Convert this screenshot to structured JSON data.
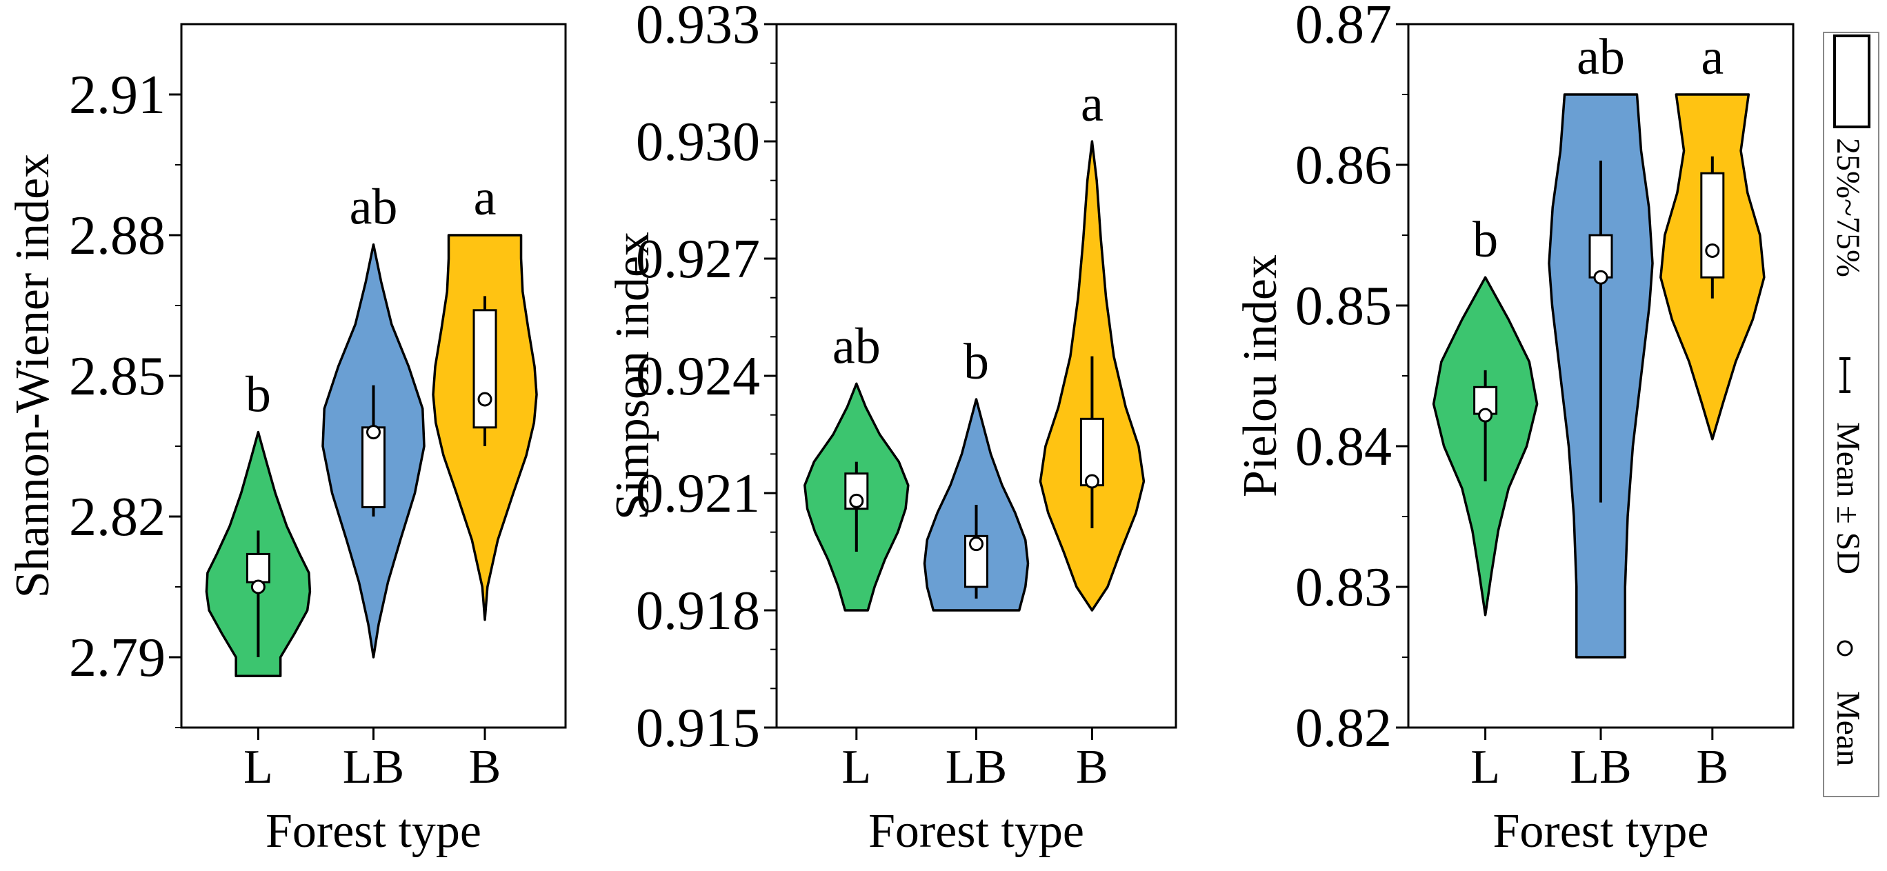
{
  "colors": {
    "L": "#3cc56f",
    "LB": "#6a9fd3",
    "B": "#ffc312"
  },
  "legend": {
    "box_label": "25%~75%",
    "whisker_label": "Mean ± SD",
    "mean_label": "Mean"
  },
  "chart_data": [
    {
      "type": "violin",
      "xlabel": "Forest type",
      "ylabel": "Shannon-Wiener index",
      "ylim": [
        2.775,
        2.925
      ],
      "yticks": [
        2.79,
        2.82,
        2.85,
        2.88,
        2.91
      ],
      "ytick_labels": [
        "2.79",
        "2.82",
        "2.85",
        "2.88",
        "2.91"
      ],
      "categories": [
        "L",
        "LB",
        "B"
      ],
      "series": [
        {
          "name": "L",
          "min": 2.786,
          "max": 2.838,
          "q1": 2.806,
          "q3": 2.812,
          "mean": 2.805,
          "sd_low": 2.79,
          "sd_high": 2.817,
          "letter": "b",
          "shape": [
            [
              2.786,
              0.43
            ],
            [
              2.79,
              0.43
            ],
            [
              2.795,
              0.7
            ],
            [
              2.8,
              0.95
            ],
            [
              2.804,
              1.0
            ],
            [
              2.808,
              0.98
            ],
            [
              2.812,
              0.8
            ],
            [
              2.818,
              0.55
            ],
            [
              2.825,
              0.33
            ],
            [
              2.832,
              0.15
            ],
            [
              2.838,
              0.0
            ]
          ]
        },
        {
          "name": "LB",
          "min": 2.79,
          "max": 2.878,
          "q1": 2.822,
          "q3": 2.839,
          "mean": 2.838,
          "sd_low": 2.82,
          "sd_high": 2.848,
          "letter": "ab",
          "shape": [
            [
              2.79,
              0.0
            ],
            [
              2.797,
              0.1
            ],
            [
              2.806,
              0.28
            ],
            [
              2.815,
              0.52
            ],
            [
              2.825,
              0.8
            ],
            [
              2.835,
              0.98
            ],
            [
              2.843,
              0.95
            ],
            [
              2.852,
              0.68
            ],
            [
              2.861,
              0.35
            ],
            [
              2.87,
              0.15
            ],
            [
              2.878,
              0.0
            ]
          ]
        },
        {
          "name": "B",
          "min": 2.798,
          "max": 2.88,
          "q1": 2.839,
          "q3": 2.864,
          "mean": 2.845,
          "sd_low": 2.835,
          "sd_high": 2.867,
          "letter": "a",
          "shape": [
            [
              2.798,
              0.0
            ],
            [
              2.805,
              0.05
            ],
            [
              2.815,
              0.25
            ],
            [
              2.825,
              0.55
            ],
            [
              2.833,
              0.8
            ],
            [
              2.84,
              0.95
            ],
            [
              2.846,
              1.0
            ],
            [
              2.852,
              0.96
            ],
            [
              2.86,
              0.84
            ],
            [
              2.868,
              0.73
            ],
            [
              2.875,
              0.7
            ],
            [
              2.88,
              0.7
            ]
          ]
        }
      ]
    },
    {
      "type": "violin",
      "xlabel": "Forest type",
      "ylabel": "Simpson index",
      "ylim": [
        0.915,
        0.933
      ],
      "yticks": [
        0.915,
        0.918,
        0.921,
        0.924,
        0.927,
        0.93,
        0.933
      ],
      "ytick_labels": [
        "0.915",
        "0.918",
        "0.921",
        "0.924",
        "0.927",
        "0.930",
        "0.933"
      ],
      "categories": [
        "L",
        "LB",
        "B"
      ],
      "series": [
        {
          "name": "L",
          "min": 0.918,
          "max": 0.9238,
          "q1": 0.9206,
          "q3": 0.9215,
          "mean": 0.9208,
          "sd_low": 0.9195,
          "sd_high": 0.9218,
          "letter": "ab",
          "shape": [
            [
              0.918,
              0.22
            ],
            [
              0.9186,
              0.35
            ],
            [
              0.9193,
              0.55
            ],
            [
              0.92,
              0.8
            ],
            [
              0.9206,
              0.95
            ],
            [
              0.9212,
              1.0
            ],
            [
              0.9218,
              0.82
            ],
            [
              0.9225,
              0.45
            ],
            [
              0.9232,
              0.18
            ],
            [
              0.9238,
              0.0
            ]
          ]
        },
        {
          "name": "LB",
          "min": 0.918,
          "max": 0.9234,
          "q1": 0.9186,
          "q3": 0.9199,
          "mean": 0.9197,
          "sd_low": 0.9183,
          "sd_high": 0.9207,
          "letter": "b",
          "shape": [
            [
              0.918,
              0.83
            ],
            [
              0.9186,
              0.95
            ],
            [
              0.9192,
              1.0
            ],
            [
              0.9198,
              0.95
            ],
            [
              0.9205,
              0.75
            ],
            [
              0.9212,
              0.5
            ],
            [
              0.922,
              0.28
            ],
            [
              0.9228,
              0.12
            ],
            [
              0.9234,
              0.0
            ]
          ]
        },
        {
          "name": "B",
          "min": 0.918,
          "max": 0.93,
          "q1": 0.9212,
          "q3": 0.9229,
          "mean": 0.9213,
          "sd_low": 0.9201,
          "sd_high": 0.9245,
          "letter": "a",
          "shape": [
            [
              0.918,
              0.0
            ],
            [
              0.9186,
              0.3
            ],
            [
              0.9195,
              0.55
            ],
            [
              0.9205,
              0.85
            ],
            [
              0.9213,
              1.0
            ],
            [
              0.9222,
              0.9
            ],
            [
              0.9232,
              0.65
            ],
            [
              0.9245,
              0.42
            ],
            [
              0.926,
              0.27
            ],
            [
              0.9275,
              0.17
            ],
            [
              0.929,
              0.09
            ],
            [
              0.93,
              0.0
            ]
          ]
        }
      ]
    },
    {
      "type": "violin",
      "xlabel": "Forest type",
      "ylabel": "Pielou index",
      "ylim": [
        0.82,
        0.87
      ],
      "yticks": [
        0.82,
        0.83,
        0.84,
        0.85,
        0.86,
        0.87
      ],
      "ytick_labels": [
        "0.82",
        "0.83",
        "0.84",
        "0.85",
        "0.86",
        "0.87"
      ],
      "categories": [
        "L",
        "LB",
        "B"
      ],
      "series": [
        {
          "name": "L",
          "min": 0.828,
          "max": 0.852,
          "q1": 0.8423,
          "q3": 0.8442,
          "mean": 0.8422,
          "sd_low": 0.8375,
          "sd_high": 0.8454,
          "letter": "b",
          "shape": [
            [
              0.828,
              0.0
            ],
            [
              0.831,
              0.12
            ],
            [
              0.834,
              0.25
            ],
            [
              0.837,
              0.45
            ],
            [
              0.84,
              0.8
            ],
            [
              0.843,
              1.0
            ],
            [
              0.846,
              0.85
            ],
            [
              0.849,
              0.45
            ],
            [
              0.852,
              0.0
            ]
          ]
        },
        {
          "name": "LB",
          "min": 0.825,
          "max": 0.865,
          "q1": 0.852,
          "q3": 0.855,
          "mean": 0.852,
          "sd_low": 0.836,
          "sd_high": 0.8603,
          "letter": "ab",
          "shape": [
            [
              0.825,
              0.47
            ],
            [
              0.83,
              0.47
            ],
            [
              0.835,
              0.52
            ],
            [
              0.84,
              0.62
            ],
            [
              0.845,
              0.78
            ],
            [
              0.85,
              0.94
            ],
            [
              0.853,
              1.0
            ],
            [
              0.857,
              0.93
            ],
            [
              0.861,
              0.78
            ],
            [
              0.865,
              0.7
            ]
          ]
        },
        {
          "name": "B",
          "min": 0.8405,
          "max": 0.865,
          "q1": 0.852,
          "q3": 0.8594,
          "mean": 0.8539,
          "sd_low": 0.8505,
          "sd_high": 0.8606,
          "letter": "a",
          "shape": [
            [
              0.8405,
              0.0
            ],
            [
              0.843,
              0.2
            ],
            [
              0.846,
              0.45
            ],
            [
              0.849,
              0.78
            ],
            [
              0.852,
              1.0
            ],
            [
              0.855,
              0.92
            ],
            [
              0.858,
              0.68
            ],
            [
              0.861,
              0.55
            ],
            [
              0.865,
              0.7
            ]
          ]
        }
      ]
    }
  ]
}
